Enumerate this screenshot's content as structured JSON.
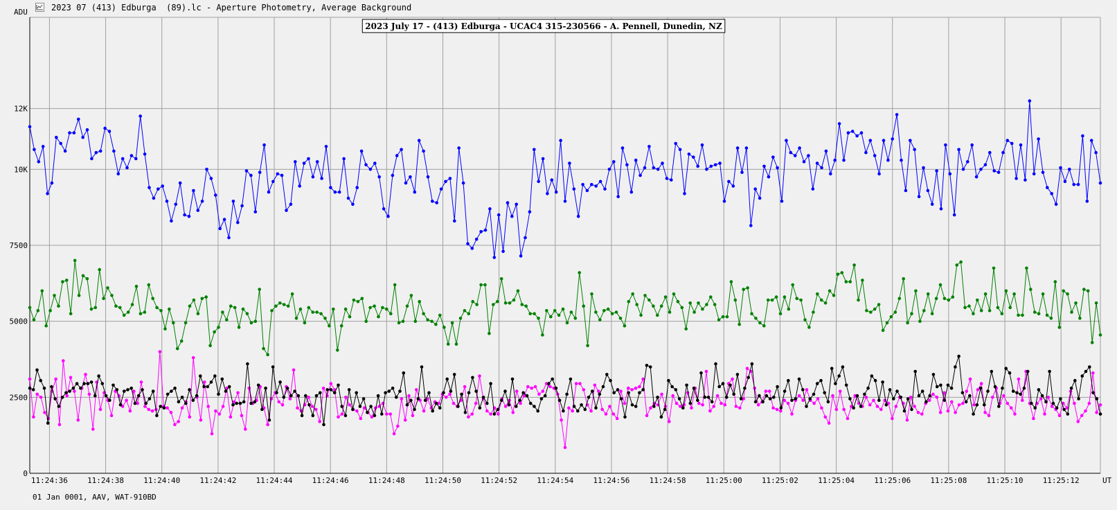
{
  "window": {
    "title": "2023 07 (413) Edburga  (89).lc - Aperture Photometry, Average Background",
    "icon": "light-curve-app-icon"
  },
  "footer": {
    "info": "01 Jan 0001, AAV, WAT-910BD"
  },
  "colors": {
    "background": "#f0f0f0",
    "plot_background": "#f0f0f0",
    "grid": "#a0a0a0",
    "target": "#0000ff",
    "comp1": "#008000",
    "comp2": "#ff00ff",
    "comp3": "#000000"
  },
  "chart_data": {
    "type": "line",
    "title": "2023 July 17 - (413) Edburga - UCAC4 315-230566 - A. Pennell, Dunedin, NZ",
    "ylabel": "ADU",
    "xlabel": "UT",
    "ylim": [
      0,
      15000
    ],
    "yticks": [
      0,
      2500,
      5000,
      7500,
      10000,
      12000
    ],
    "ytick_labels": [
      "0",
      "2500",
      "5000",
      "7500",
      "10K",
      "12K"
    ],
    "x_range": [
      "11:24:35.3",
      "11:25:13.4"
    ],
    "x_ticks": [
      "11:24:36",
      "11:24:38",
      "11:24:40",
      "11:24:42",
      "11:24:44",
      "11:24:46",
      "11:24:48",
      "11:24:50",
      "11:24:52",
      "11:24:54",
      "11:24:56",
      "11:24:58",
      "11:25:00",
      "11:25:02",
      "11:25:04",
      "11:25:06",
      "11:25:08",
      "11:25:10",
      "11:25:12"
    ],
    "grid": true,
    "legend": "none",
    "series": [
      {
        "color": "#0000ff",
        "values": [
          11400,
          10650,
          10250,
          10750,
          9200,
          9550,
          11050,
          10850,
          10600,
          11200,
          11200,
          11650,
          11050,
          11300,
          10350,
          10550,
          10600,
          11350,
          11250,
          10600,
          9850,
          10350,
          10050,
          10450,
          10350,
          11750,
          10500,
          9400,
          9050,
          9350,
          9450,
          8950,
          8300,
          8850,
          9550,
          8500,
          8450,
          9300,
          8650,
          8950,
          10000,
          9700,
          9150,
          8050,
          8350,
          7750,
          8950,
          8250,
          8800,
          9950,
          9800,
          8600,
          9900,
          10800,
          9250,
          9600,
          9850,
          9800,
          8650,
          8850,
          10250,
          9450,
          10200,
          10350,
          9750,
          10250,
          9700,
          10750,
          9400,
          9250,
          9250,
          10350,
          9050,
          8850,
          9400,
          10600,
          10150,
          10000,
          10200,
          9750,
          8700,
          8450,
          9800,
          10450,
          10650,
          9550,
          9750,
          9250,
          10950,
          10600,
          9750,
          8950,
          8900,
          9350,
          9600,
          9700,
          8300,
          10700,
          9550,
          7550,
          7400,
          7700,
          7950,
          8000,
          8700,
          7100,
          8500,
          7300,
          8900,
          8450,
          8850,
          7150,
          7750,
          8600,
          10650,
          9600,
          10350,
          9200,
          9650,
          9250,
          10950,
          8950,
          10200,
          9350,
          8450,
          9500,
          9300,
          9500,
          9450,
          9600,
          9350,
          10000,
          10250,
          9100,
          10700,
          10150,
          9250,
          10300,
          9800,
          10050,
          10750,
          10050,
          10000,
          10200,
          9700,
          9650,
          10850,
          10650,
          9200,
          10500,
          10400,
          10100,
          10800,
          10000,
          10100,
          10150,
          10200,
          8950,
          9600,
          9450,
          10700,
          9900,
          10700,
          8150,
          9350,
          9050,
          10100,
          9750,
          10400,
          10050,
          8950,
          10950,
          10550,
          10450,
          10700,
          10250,
          10450,
          9350,
          10200,
          10050,
          10600,
          9850,
          10300,
          11500,
          10300,
          11200,
          11250,
          11100,
          11200,
          10550,
          10950,
          10450,
          9850,
          10950,
          10300,
          11000,
          11800,
          10300,
          9300,
          10950,
          10650,
          9100,
          10050,
          9300,
          8850,
          9950,
          8700,
          10800,
          9850,
          8500,
          10650,
          10000,
          10250,
          10800,
          9750,
          10000,
          10150,
          10550,
          9950,
          9900,
          10550,
          10950,
          10850,
          9700,
          10800,
          9650,
          12250,
          9850,
          11000,
          9900,
          9400,
          9200,
          8850,
          10050,
          9600,
          10000,
          9500,
          9500,
          11100,
          8950,
          10950,
          10550,
          9550
        ]
      },
      {
        "color": "#008000",
        "values": [
          5450,
          5050,
          5350,
          6000,
          4850,
          5350,
          5850,
          5500,
          6300,
          6350,
          5250,
          7000,
          5850,
          6500,
          6400,
          5400,
          5450,
          6700,
          5750,
          6100,
          5850,
          5500,
          5450,
          5200,
          5300,
          5550,
          6150,
          5250,
          5300,
          6200,
          5750,
          5450,
          5350,
          4750,
          5400,
          4950,
          4100,
          4350,
          4950,
          5500,
          5700,
          5250,
          5750,
          5800,
          4200,
          4650,
          4800,
          5300,
          5050,
          5500,
          5450,
          4800,
          5400,
          5250,
          4950,
          5000,
          6050,
          4100,
          3900,
          5350,
          5500,
          5600,
          5550,
          5500,
          5900,
          5100,
          5400,
          4950,
          5450,
          5300,
          5300,
          5250,
          5100,
          4850,
          5400,
          4050,
          4850,
          5400,
          5150,
          5700,
          5650,
          5750,
          5000,
          5450,
          5500,
          5150,
          5450,
          5400,
          5250,
          6200,
          4950,
          5000,
          5500,
          5850,
          5000,
          5650,
          5250,
          5050,
          5000,
          4900,
          5200,
          4800,
          4250,
          4950,
          4250,
          5100,
          5350,
          5250,
          5650,
          5550,
          6200,
          6200,
          4600,
          5550,
          5650,
          6400,
          5600,
          5600,
          5700,
          6000,
          5550,
          5500,
          5250,
          5250,
          5100,
          4550,
          5350,
          5150,
          5350,
          5200,
          5400,
          4950,
          5300,
          5100,
          6600,
          5500,
          4200,
          5900,
          5300,
          5050,
          5350,
          5400,
          5250,
          5300,
          5100,
          4850,
          5650,
          5900,
          5550,
          5200,
          5850,
          5700,
          5500,
          5200,
          5500,
          5800,
          5300,
          5900,
          5650,
          5450,
          4750,
          5600,
          5300,
          5600,
          5400,
          5550,
          5800,
          5550,
          5050,
          5150,
          5150,
          6300,
          5700,
          4900,
          6050,
          6100,
          5250,
          5100,
          4950,
          4850,
          5700,
          5700,
          5800,
          5250,
          5800,
          5400,
          6200,
          5750,
          5700,
          5050,
          4800,
          5300,
          5900,
          5700,
          5600,
          6000,
          5850,
          6550,
          6600,
          6300,
          6300,
          6850,
          5700,
          6350,
          5350,
          5300,
          5400,
          5550,
          4700,
          4950,
          5150,
          5300,
          5750,
          6400,
          4950,
          5250,
          6000,
          5000,
          5350,
          5900,
          5250,
          5750,
          6200,
          5750,
          5700,
          5800,
          6850,
          6950,
          5450,
          5500,
          5250,
          5700,
          5350,
          5900,
          5350,
          6750,
          5450,
          5250,
          6000,
          5450,
          5900,
          5200,
          5200,
          6750,
          6050,
          5300,
          5250,
          5900,
          5200,
          5100,
          6300,
          4800,
          6000,
          5900,
          5300,
          5600,
          5100,
          6050,
          6000,
          4300,
          5600,
          4550
        ]
      },
      {
        "color": "#ff00ff",
        "values": [
          3100,
          1850,
          2600,
          2500,
          2000,
          1800,
          2700,
          3100,
          1600,
          3700,
          2550,
          3150,
          2700,
          1750,
          2800,
          3250,
          2600,
          1450,
          3000,
          2100,
          2650,
          2400,
          1900,
          2700,
          2550,
          2200,
          2400,
          2050,
          2700,
          2300,
          3000,
          2200,
          2100,
          2050,
          2100,
          4000,
          2200,
          2150,
          2000,
          1600,
          1700,
          2150,
          2350,
          1850,
          3800,
          2500,
          1750,
          3000,
          2200,
          1300,
          2050,
          1950,
          2200,
          2800,
          1850,
          2350,
          2650,
          1900,
          1450,
          2800,
          2300,
          2400,
          2850,
          2150,
          1600,
          2450,
          2650,
          2350,
          2250,
          2850,
          2450,
          3400,
          2150,
          2050,
          2250,
          2500,
          2200,
          2100,
          1700,
          2800,
          2550,
          2950,
          2750,
          1850,
          1950,
          2500,
          2250,
          2100,
          2050,
          1800,
          2150,
          2000,
          1850,
          2150,
          2200,
          2300,
          1950,
          1950,
          1300,
          1550,
          2450,
          1750,
          2550,
          1900,
          2750,
          2400,
          2050,
          2450,
          2150,
          2350,
          2300,
          2600,
          2500,
          2600,
          2300,
          2200,
          2400,
          2850,
          1850,
          1950,
          2300,
          3200,
          2450,
          2050,
          1950,
          2150,
          1950,
          2450,
          2200,
          2400,
          2000,
          2700,
          2300,
          2550,
          2850,
          2800,
          2850,
          2600,
          2700,
          2950,
          2850,
          2800,
          2600,
          1750,
          850,
          2150,
          2050,
          2950,
          2950,
          2750,
          2250,
          2050,
          2900,
          2700,
          2100,
          1950,
          2200,
          1950,
          1800,
          2700,
          2300,
          2800,
          2750,
          2800,
          2850,
          3100,
          1900,
          2150,
          2300,
          2250,
          2600,
          2200,
          1700,
          2550,
          2300,
          2200,
          2250,
          2650,
          2150,
          2800,
          2300,
          2250,
          3350,
          2050,
          2200,
          2550,
          2300,
          2250,
          2950,
          3100,
          2200,
          2150,
          2450,
          3450,
          3350,
          2800,
          2250,
          2350,
          2700,
          2700,
          2150,
          2100,
          2050,
          2400,
          2300,
          1950,
          2400,
          2550,
          2400,
          2750,
          2400,
          2300,
          2450,
          2150,
          1850,
          1650,
          2550,
          2100,
          2700,
          2100,
          1800,
          2200,
          2550,
          2300,
          2200,
          2500,
          2250,
          2400,
          2200,
          2100,
          2400,
          2300,
          1800,
          2200,
          2500,
          2300,
          1750,
          2500,
          2200,
          2000,
          1950,
          2300,
          2400,
          2600,
          2500,
          2000,
          2650,
          2050,
          2350,
          2000,
          2250,
          2300,
          2700,
          3100,
          2250,
          2750,
          2950,
          2000,
          1900,
          2500,
          2800,
          2300,
          2550,
          2300,
          2150,
          1950,
          3100,
          2400,
          3350,
          2300,
          1800,
          2300,
          2450,
          1950,
          2500,
          2200,
          2100,
          1900,
          2300,
          2150,
          2700,
          2300,
          1700,
          1900,
          2050,
          2300,
          3300,
          2000,
          2250
        ]
      },
      {
        "color": "#000000",
        "values": [
          2800,
          2750,
          3400,
          3050,
          2800,
          1650,
          2850,
          2450,
          2200,
          2500,
          2650,
          2700,
          2800,
          2950,
          2800,
          2950,
          2950,
          3000,
          2550,
          3200,
          2950,
          2550,
          2400,
          2900,
          2750,
          2250,
          2700,
          2750,
          2800,
          2300,
          2550,
          2750,
          2300,
          2450,
          2700,
          1900,
          2200,
          2150,
          2600,
          2700,
          2800,
          2350,
          2500,
          2300,
          2750,
          2400,
          2550,
          3200,
          2850,
          2850,
          3000,
          3200,
          2600,
          3100,
          2700,
          2850,
          2250,
          2300,
          2300,
          2350,
          3600,
          2300,
          2350,
          2900,
          2100,
          2800,
          1750,
          3500,
          2650,
          3000,
          2500,
          2800,
          2550,
          2700,
          2550,
          1900,
          2550,
          2250,
          1900,
          2550,
          2650,
          1600,
          2750,
          2750,
          2650,
          2900,
          2200,
          1900,
          2750,
          2100,
          2650,
          2200,
          2450,
          2000,
          2200,
          1900,
          2550,
          1950,
          2650,
          2700,
          2800,
          2500,
          2700,
          3300,
          2250,
          2400,
          2100,
          2450,
          3500,
          2400,
          2650,
          2050,
          2300,
          2150,
          2650,
          3100,
          2700,
          3250,
          2200,
          2600,
          2000,
          2650,
          3150,
          2700,
          2150,
          2500,
          2300,
          2950,
          1950,
          2100,
          2400,
          2700,
          2250,
          3100,
          2200,
          2400,
          2650,
          2550,
          2300,
          2200,
          2050,
          2450,
          2550,
          2950,
          3100,
          2800,
          2400,
          2050,
          2600,
          3100,
          2200,
          2050,
          2250,
          2100,
          2500,
          2700,
          2150,
          2600,
          2850,
          3250,
          3050,
          2650,
          2750,
          2450,
          1850,
          2650,
          2250,
          2200,
          2650,
          2750,
          3550,
          3500,
          2200,
          2500,
          1850,
          2100,
          3050,
          2850,
          2750,
          2450,
          2150,
          2900,
          2300,
          2800,
          2400,
          3300,
          2500,
          2500,
          2350,
          3600,
          2850,
          2950,
          2500,
          2900,
          2600,
          3250,
          2450,
          2800,
          3150,
          3600,
          2350,
          2550,
          2350,
          2550,
          2450,
          2500,
          2850,
          2150,
          2700,
          3050,
          2400,
          2450,
          3100,
          2750,
          2200,
          2450,
          2600,
          2950,
          3050,
          2650,
          2350,
          3450,
          2950,
          3200,
          3500,
          2900,
          2450,
          2150,
          2550,
          2200,
          2600,
          2800,
          3200,
          3050,
          2400,
          3000,
          2250,
          2750,
          2450,
          2700,
          2500,
          2050,
          2450,
          2100,
          3350,
          2550,
          2700,
          2350,
          2550,
          3250,
          2850,
          2900,
          2400,
          2900,
          2800,
          3500,
          3850,
          2650,
          2350,
          2550,
          1950,
          2250,
          2800,
          2250,
          2700,
          3350,
          2850,
          2200,
          2800,
          3450,
          3300,
          2700,
          2650,
          2600,
          2800,
          3350,
          2300,
          2150,
          2750,
          2550,
          2350,
          3350,
          2300,
          2150,
          2450,
          2100,
          1950,
          2800,
          3050,
          2450,
          3200,
          3350,
          3500,
          2650,
          2450,
          1950
        ]
      }
    ]
  }
}
